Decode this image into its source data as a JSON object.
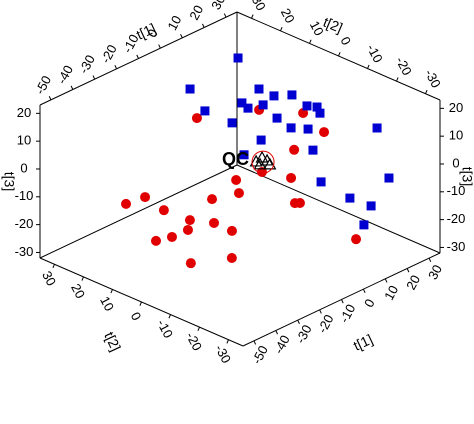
{
  "chart_data": {
    "type": "scatter3d",
    "xlabel": "t[1]",
    "ylabel": "t[2]",
    "zlabel": "t[3]",
    "xlim": [
      -55,
      35
    ],
    "ylim": [
      -35,
      35
    ],
    "zlim": [
      -32,
      23
    ],
    "xticks": [
      -50,
      -40,
      -30,
      -20,
      -10,
      0,
      10,
      20,
      30
    ],
    "yticks": [
      -30,
      -20,
      -10,
      0,
      10,
      20,
      30
    ],
    "zticks": [
      -30,
      -20,
      -10,
      0,
      10,
      20
    ],
    "annotation": "QC",
    "series": [
      {
        "color": "#e00000",
        "marker": "circle",
        "x": [
          -20.4,
          8.0,
          28.1,
          28.4,
          24.0,
          9.3,
          -2.5,
          -1.2,
          22.6,
          15.1,
          17.4,
          -44.1,
          -52.8,
          -35.5,
          -13.5,
          -23.6,
          -12.6,
          -39.1,
          -31.8,
          -24.5,
          -4.4,
          -51.0,
          -23.0,
          15.2
        ],
        "y": [
          7,
          7,
          7,
          0,
          7,
          7,
          7,
          7,
          7,
          0,
          0,
          7,
          7,
          7,
          7,
          7,
          7,
          7,
          7,
          7,
          7,
          -14,
          -7,
          -21
        ],
        "z": [
          18.1,
          10.5,
          1.9,
          -1.9,
          -9.8,
          -12.3,
          -10.8,
          -16.0,
          -19.4,
          -22.5,
          -23.3,
          -1.5,
          -0.7,
          -9.4,
          -13.6,
          -17.4,
          -22.5,
          -19.1,
          -20.4,
          -20.6,
          -28.4,
          -13.2,
          -24.9,
          -26.0
        ]
      },
      {
        "color": "#0000d0",
        "marker": "square",
        "x": [
          26.2,
          -5.0,
          26.5,
          14.8,
          23.0,
          1.8,
          18.7,
          12.2,
          19.1,
          14.2,
          16.2,
          20.6,
          25.2,
          21.9,
          22.6,
          21.1,
          18.2,
          18.7,
          24.8,
          25.6,
          22.4,
          26.3,
          26.7,
          18.8,
          10.4
        ],
        "y": [
          28,
          21,
          21,
          7,
          7,
          21,
          21,
          14,
          14,
          21,
          7,
          0,
          0,
          -3.5,
          7,
          0,
          14,
          -3.5,
          -21,
          -24.5,
          -3.5,
          -10.5,
          -17.5,
          -21,
          14
        ],
        "z": [
          12.9,
          16.5,
          4.8,
          13.0,
          10.3,
          6.1,
          2.7,
          6.4,
          5.0,
          -2.8,
          4.5,
          10.4,
          8.3,
          8.9,
          -1.4,
          1.9,
          -7.3,
          -3.2,
          10.4,
          -6.3,
          -16.0,
          -20.1,
          -19.9,
          -22.2,
          -9.7
        ]
      },
      {
        "color": "#000000",
        "marker": "triangle",
        "x": [
          4.7,
          2.0,
          7.0,
          3.8,
          8.3
        ],
        "y": [
          3.5,
          3.5,
          3.5,
          3.5,
          3.5
        ],
        "z": [
          -4.0,
          -4.4,
          -5.9,
          -6.1,
          -7.8
        ]
      }
    ]
  }
}
